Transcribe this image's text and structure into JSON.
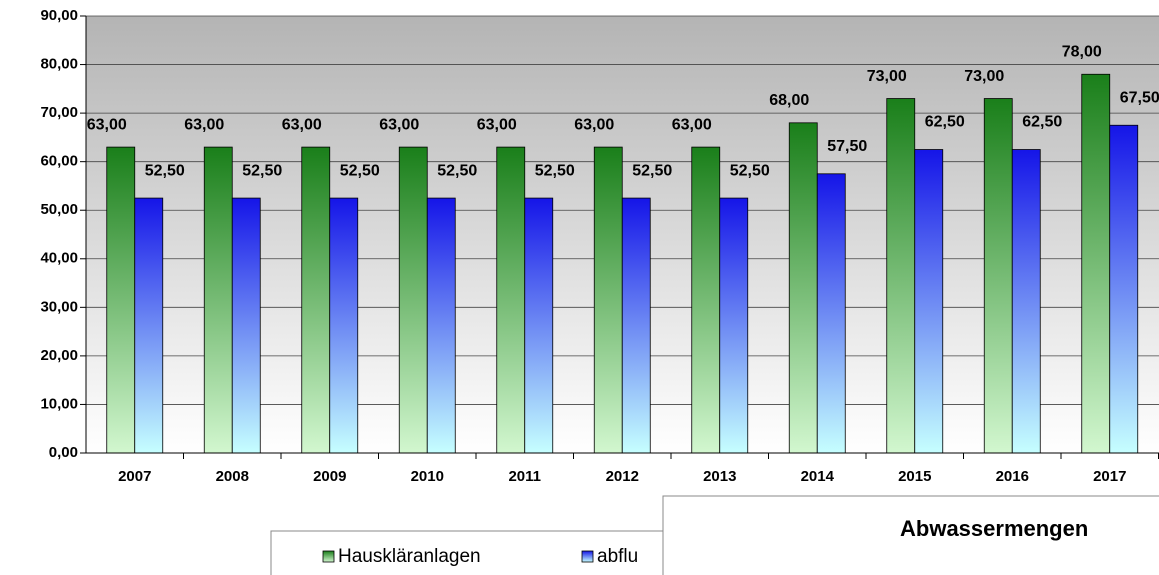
{
  "chart_data": {
    "type": "bar",
    "title": "Abwassermengen",
    "categories": [
      "2007",
      "2008",
      "2009",
      "2010",
      "2011",
      "2012",
      "2013",
      "2014",
      "2015",
      "2016",
      "2017"
    ],
    "series": [
      {
        "name": "Hauskläranlagen",
        "color": "#1a7f1a",
        "values": [
          63,
          63,
          63,
          63,
          63,
          63,
          63,
          68,
          73,
          73,
          78
        ],
        "value_labels": [
          "63,00",
          "63,00",
          "63,00",
          "63,00",
          "63,00",
          "63,00",
          "63,00",
          "68,00",
          "73,00",
          "73,00",
          "78,00"
        ]
      },
      {
        "name": "abflu",
        "color": "#1515e8",
        "values": [
          52.5,
          52.5,
          52.5,
          52.5,
          52.5,
          52.5,
          52.5,
          57.5,
          62.5,
          62.5,
          67.5
        ],
        "value_labels": [
          "52,50",
          "52,50",
          "52,50",
          "52,50",
          "52,50",
          "52,50",
          "52,50",
          "57,50",
          "62,50",
          "62,50",
          "67,50"
        ]
      }
    ],
    "ylim": [
      0,
      90
    ],
    "yticks": [
      {
        "value": 0,
        "label": "0,00"
      },
      {
        "value": 10,
        "label": "10,00"
      },
      {
        "value": 20,
        "label": "20,00"
      },
      {
        "value": 30,
        "label": "30,00"
      },
      {
        "value": 40,
        "label": "40,00"
      },
      {
        "value": 50,
        "label": "50,00"
      },
      {
        "value": 60,
        "label": "60,00"
      },
      {
        "value": 70,
        "label": "70,00"
      },
      {
        "value": 80,
        "label": "80,00"
      },
      {
        "value": 90,
        "label": "90,00"
      }
    ],
    "grid": true
  }
}
